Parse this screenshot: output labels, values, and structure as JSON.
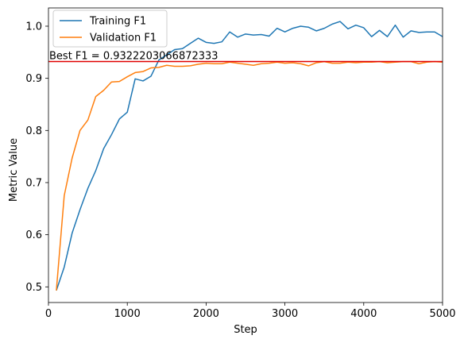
{
  "chart_data": {
    "type": "line",
    "xlabel": "Step",
    "ylabel": "Metric Value",
    "xlim": [
      0,
      5000
    ],
    "ylim": [
      0.47,
      1.035
    ],
    "xticks": [
      0,
      1000,
      2000,
      3000,
      4000,
      5000
    ],
    "yticks": [
      0.5,
      0.6,
      0.7,
      0.8,
      0.9,
      1.0
    ],
    "xtick_labels": [
      "0",
      "1000",
      "2000",
      "3000",
      "4000",
      "5000"
    ],
    "ytick_labels": [
      "0.5",
      "0.6",
      "0.7",
      "0.8",
      "0.9",
      "1.0"
    ],
    "grid": false,
    "legend_position": "top-left",
    "x": [
      100,
      200,
      300,
      400,
      500,
      600,
      700,
      800,
      900,
      1000,
      1100,
      1200,
      1300,
      1400,
      1500,
      1600,
      1700,
      1800,
      1900,
      2000,
      2100,
      2200,
      2300,
      2400,
      2500,
      2600,
      2700,
      2800,
      2900,
      3000,
      3100,
      3200,
      3300,
      3400,
      3500,
      3600,
      3700,
      3800,
      3900,
      4000,
      4100,
      4200,
      4300,
      4400,
      4500,
      4600,
      4700,
      4800,
      4900,
      5000
    ],
    "series": [
      {
        "name": "Training F1",
        "color": "#1f77b4",
        "values": [
          0.493,
          0.538,
          0.603,
          0.648,
          0.689,
          0.723,
          0.765,
          0.792,
          0.822,
          0.835,
          0.899,
          0.895,
          0.904,
          0.935,
          0.945,
          0.955,
          0.957,
          0.967,
          0.977,
          0.969,
          0.967,
          0.97,
          0.989,
          0.979,
          0.985,
          0.983,
          0.984,
          0.981,
          0.996,
          0.989,
          0.996,
          1.0,
          0.998,
          0.991,
          0.996,
          1.004,
          1.009,
          0.995,
          1.002,
          0.997,
          0.98,
          0.992,
          0.98,
          1.002,
          0.979,
          0.991,
          0.988,
          0.989,
          0.989,
          0.98
        ]
      },
      {
        "name": "Validation F1",
        "color": "#ff7f0e",
        "values": [
          0.493,
          0.675,
          0.747,
          0.8,
          0.82,
          0.865,
          0.877,
          0.893,
          0.894,
          0.903,
          0.911,
          0.913,
          0.92,
          0.921,
          0.925,
          0.923,
          0.923,
          0.924,
          0.927,
          0.929,
          0.928,
          0.928,
          0.931,
          0.929,
          0.927,
          0.925,
          0.928,
          0.929,
          0.931,
          0.929,
          0.93,
          0.928,
          0.924,
          0.93,
          0.932,
          0.929,
          0.929,
          0.931,
          0.93,
          0.931,
          0.931,
          0.932,
          0.93,
          0.931,
          0.932,
          0.932,
          0.928,
          0.931,
          0.932,
          0.931
        ]
      }
    ],
    "reference_line": {
      "y": 0.9322203066872333,
      "color": "#e00000",
      "label": "Best F1 = 0.9322203066872333"
    }
  }
}
